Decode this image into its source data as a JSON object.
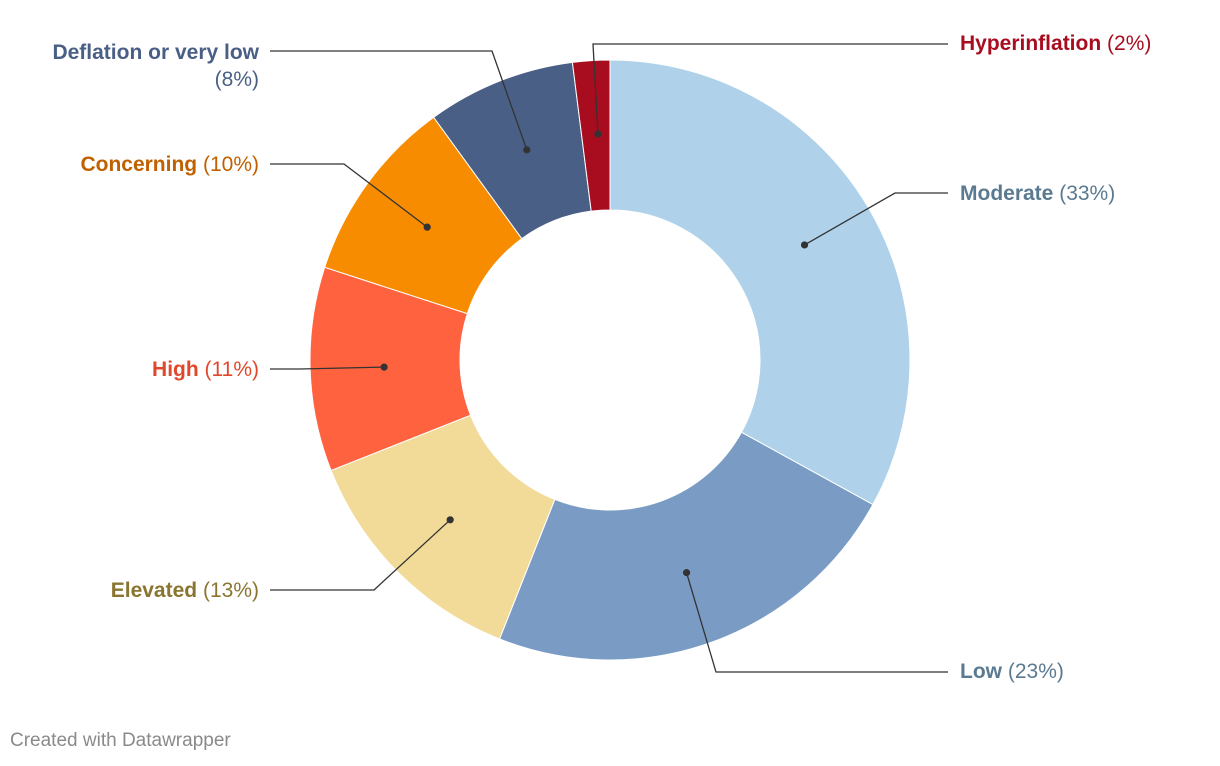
{
  "chart_data": {
    "type": "pie",
    "style": "donut",
    "slices": [
      {
        "name": "Moderate",
        "value": 33,
        "pct_label": "(33%)",
        "color": "#afd2ea",
        "label_color": "#5a7a92"
      },
      {
        "name": "Low",
        "value": 23,
        "pct_label": "(23%)",
        "color": "#7a9cc4",
        "label_color": "#5a7a92"
      },
      {
        "name": "Elevated",
        "value": 13,
        "pct_label": "(13%)",
        "color": "#f2db98",
        "label_color": "#8a7530"
      },
      {
        "name": "High",
        "value": 11,
        "pct_label": "(11%)",
        "color": "#ff623f",
        "label_color": "#e0472b"
      },
      {
        "name": "Concerning",
        "value": 10,
        "pct_label": "(10%)",
        "color": "#f88c01",
        "label_color": "#c06000"
      },
      {
        "name": "Deflation or very low",
        "value": 8,
        "pct_label": "(8%)",
        "color": "#4a5f85",
        "label_color": "#4a5f85"
      },
      {
        "name": "Hyperinflation",
        "value": 2,
        "pct_label": "(2%)",
        "color": "#a70d1f",
        "label_color": "#a70d1f"
      }
    ]
  },
  "footer": {
    "credit": "Created with Datawrapper"
  }
}
